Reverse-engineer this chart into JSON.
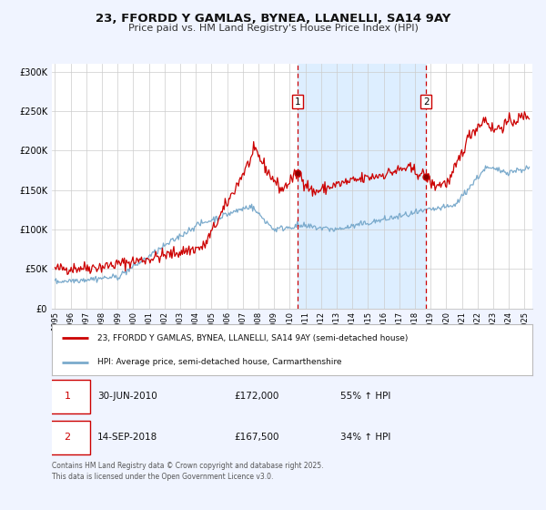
{
  "title": "23, FFORDD Y GAMLAS, BYNEA, LLANELLI, SA14 9AY",
  "subtitle": "Price paid vs. HM Land Registry's House Price Index (HPI)",
  "legend_line1": "23, FFORDD Y GAMLAS, BYNEA, LLANELLI, SA14 9AY (semi-detached house)",
  "legend_line2": "HPI: Average price, semi-detached house, Carmarthenshire",
  "footnote1": "Contains HM Land Registry data © Crown copyright and database right 2025.",
  "footnote2": "This data is licensed under the Open Government Licence v3.0.",
  "point1_date": "30-JUN-2010",
  "point1_price": "£172,000",
  "point1_hpi": "55% ↑ HPI",
  "point1_year": 2010.5,
  "point2_date": "14-SEP-2018",
  "point2_price": "£167,500",
  "point2_hpi": "34% ↑ HPI",
  "point2_year": 2018.71,
  "red_color": "#cc0000",
  "blue_color": "#7aaacc",
  "background_color": "#f0f4ff",
  "plot_bg": "#ffffff",
  "shaded_region_color": "#ddeeff",
  "grid_color": "#cccccc",
  "ylim": [
    0,
    310000
  ],
  "xlim_start": 1994.8,
  "xlim_end": 2025.5,
  "yticks": [
    0,
    50000,
    100000,
    150000,
    200000,
    250000,
    300000
  ],
  "ytick_labels": [
    "£0",
    "£50K",
    "£100K",
    "£150K",
    "£200K",
    "£250K",
    "£300K"
  ],
  "xticks": [
    1995,
    1996,
    1997,
    1998,
    1999,
    2000,
    2001,
    2002,
    2003,
    2004,
    2005,
    2006,
    2007,
    2008,
    2009,
    2010,
    2011,
    2012,
    2013,
    2014,
    2015,
    2016,
    2017,
    2018,
    2019,
    2020,
    2021,
    2022,
    2023,
    2024,
    2025
  ]
}
